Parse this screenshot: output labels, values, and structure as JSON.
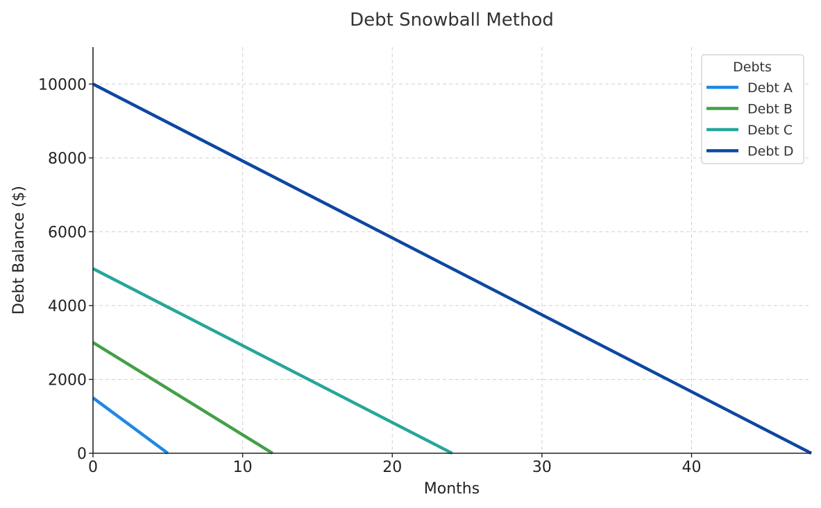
{
  "chart_data": {
    "type": "line",
    "title": "Debt Snowball Method",
    "xlabel": "Months",
    "ylabel": "Debt Balance ($)",
    "xlim": [
      0,
      48
    ],
    "ylim": [
      0,
      11000
    ],
    "xticks": [
      0,
      10,
      20,
      30,
      40
    ],
    "yticks": [
      0,
      2000,
      4000,
      6000,
      8000,
      10000
    ],
    "grid": true,
    "legend": {
      "title": "Debts",
      "placement": "top-right"
    },
    "series": [
      {
        "name": "Debt A",
        "color": "#1e88e5",
        "x": [
          0,
          5
        ],
        "y": [
          1500,
          0
        ]
      },
      {
        "name": "Debt B",
        "color": "#43a047",
        "x": [
          0,
          12
        ],
        "y": [
          3000,
          0
        ]
      },
      {
        "name": "Debt C",
        "color": "#26a69a",
        "x": [
          0,
          24
        ],
        "y": [
          5000,
          0
        ]
      },
      {
        "name": "Debt D",
        "color": "#0d47a1",
        "x": [
          0,
          48
        ],
        "y": [
          10000,
          0
        ]
      }
    ]
  }
}
